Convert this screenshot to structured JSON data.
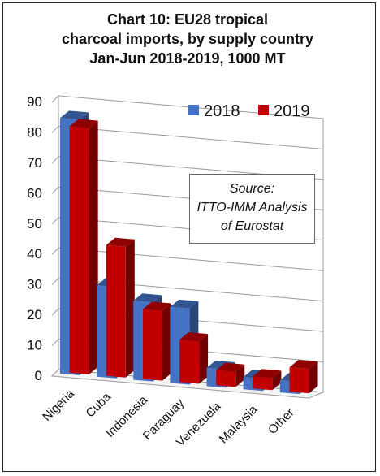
{
  "chart_data": {
    "type": "bar",
    "title_lines": [
      "Chart 10: EU28 tropical",
      "charcoal imports, by supply country",
      "Jan-Jun 2018-2019, 1000 MT"
    ],
    "categories": [
      "Nigeria",
      "Cuba",
      "Indonesia",
      "Paraguay",
      "Venezuela",
      "Malaysia",
      "Other"
    ],
    "series": [
      {
        "name": "2018",
        "color": "#4472C4",
        "values": [
          84,
          30,
          26,
          25,
          6,
          4,
          4
        ]
      },
      {
        "name": "2019",
        "color": "#C00000",
        "values": [
          81,
          43,
          23,
          14,
          5,
          4,
          8
        ]
      }
    ],
    "ylim": [
      0,
      90
    ],
    "yticks": [
      0,
      10,
      20,
      30,
      40,
      50,
      60,
      70,
      80,
      90
    ],
    "xlabel": "",
    "ylabel": "",
    "grid": true,
    "legend": "top-right",
    "annotation_lines": [
      "Source:",
      "ITTO-IMM Analysis",
      "of Eurostat"
    ]
  }
}
